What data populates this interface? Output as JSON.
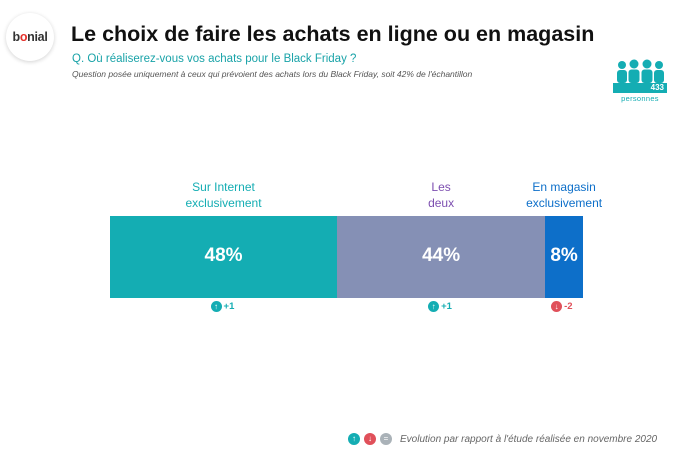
{
  "brand": {
    "logo_pre": "b",
    "logo_accent": "o",
    "logo_post": "nial"
  },
  "title": "Le choix de faire les achats en ligne ou en magasin",
  "question": "Q. Où réaliserez-vous vos achats pour le Black Friday ?",
  "note": "Question posée uniquement à ceux qui prévoient des achats lors du Black Friday, soit 42% de l'échantillon",
  "sample": {
    "count": "433",
    "label": "personnes"
  },
  "colors": {
    "teal": "#14adb3",
    "grey_blue": "#8590b5",
    "blue": "#0d6fc9",
    "up": "#14adb3",
    "down": "#e0505a",
    "same": "#aab2b8",
    "purple": "#7d4fb0"
  },
  "chart_data": {
    "type": "bar",
    "stacked": true,
    "orientation": "horizontal",
    "categories": [
      "Sur Internet exclusivement",
      "Les deux",
      "En magasin exclusivement"
    ],
    "label_lines": [
      [
        "Sur Internet",
        "exclusivement"
      ],
      [
        "Les",
        "deux"
      ],
      [
        "En magasin",
        "exclusivement"
      ]
    ],
    "values": [
      48,
      44,
      8
    ],
    "value_labels": [
      "48%",
      "44%",
      "8%"
    ],
    "changes": [
      "+1",
      "+1",
      "-2"
    ],
    "change_direction": [
      "up",
      "up",
      "down"
    ]
  },
  "legend": {
    "up_icon": "arrow-up-icon",
    "down_icon": "arrow-down-icon",
    "same_icon": "equal-icon",
    "text": "Evolution par rapport à l'étude réalisée en novembre 2020"
  }
}
